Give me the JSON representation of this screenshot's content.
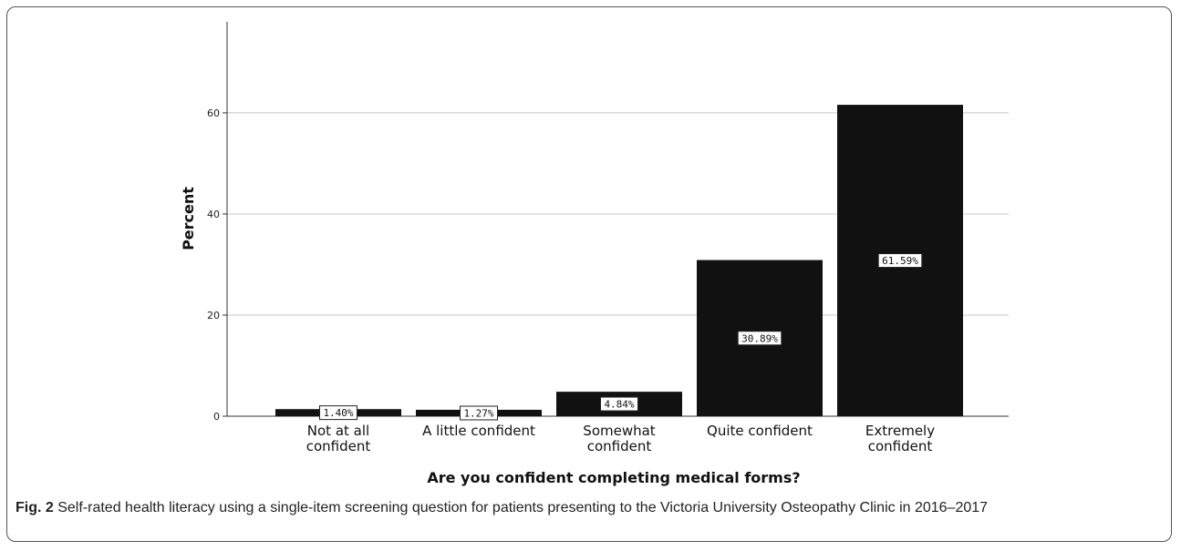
{
  "chart_data": {
    "type": "bar",
    "categories": [
      [
        "Not at all",
        "confident"
      ],
      [
        "A little confident"
      ],
      [
        "Somewhat",
        "confident"
      ],
      [
        "Quite confident"
      ],
      [
        "Extremely",
        "confident"
      ]
    ],
    "values": [
      1.4,
      1.27,
      4.84,
      30.89,
      61.59
    ],
    "data_labels": [
      "1.40%",
      "1.27%",
      "4.84%",
      "30.89%",
      "61.59%"
    ],
    "xlabel": "Are you confident completing medical forms?",
    "ylabel": "Percent",
    "ylim": [
      0,
      78
    ],
    "yticks": [
      0,
      20,
      40,
      60
    ],
    "grid": true,
    "bar_color": "#111111"
  },
  "caption": {
    "label": "Fig. 2",
    "text": " Self-rated health literacy using a single-item screening question for patients presenting to the Victoria University Osteopathy Clinic in 2016–2017"
  }
}
